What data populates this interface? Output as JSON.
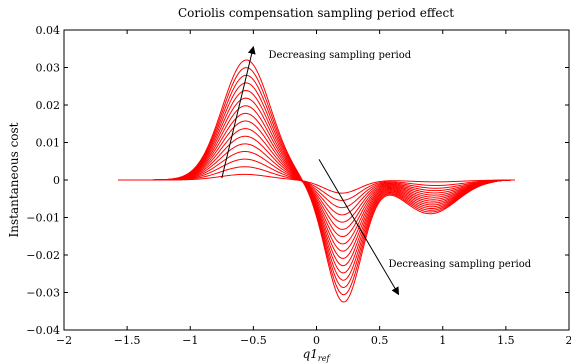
{
  "chart_data": {
    "type": "line",
    "title": "Coriolis compensation sampling period effect",
    "xlabel": "q1",
    "xlabel_sub": "ref",
    "ylabel": "Instantaneous cost",
    "xlim": [
      -2,
      2
    ],
    "ylim": [
      -0.04,
      0.04
    ],
    "xticks": [
      -2,
      -1.5,
      -1,
      -0.5,
      0,
      0.5,
      1,
      1.5,
      2
    ],
    "xtick_labels": [
      "−2",
      "−1.5",
      "−1",
      "−0.5",
      "0",
      "0.5",
      "1",
      "1.5",
      "2"
    ],
    "yticks": [
      -0.04,
      -0.03,
      -0.02,
      -0.01,
      0,
      0.01,
      0.02,
      0.03,
      0.04
    ],
    "ytick_labels": [
      "−0.04",
      "−0.03",
      "−0.02",
      "−0.01",
      "0",
      "0.01",
      "0.02",
      "0.03",
      "0.04"
    ],
    "grid": false,
    "series_color": "#ff0000",
    "curve_count": 16,
    "x_range": [
      -1.57,
      1.57
    ],
    "positive_peak": {
      "x": -0.57,
      "amplitudes": [
        0.0015,
        0.032
      ]
    },
    "negative_trough": {
      "x": 0.2,
      "amplitudes": [
        -0.0035,
        -0.0325
      ]
    },
    "shoulder": {
      "x": 0.95,
      "amplitudes": [
        -0.0005,
        -0.009
      ]
    },
    "annotations": [
      {
        "text": "Decreasing sampling period",
        "arrow_from": [
          -0.75,
          0.0005
        ],
        "arrow_to": [
          -0.5,
          0.0355
        ],
        "text_at": [
          -0.38,
          0.0325
        ]
      },
      {
        "text": "Decreasing sampling period",
        "arrow_from": [
          0.02,
          0.0055
        ],
        "arrow_to": [
          0.65,
          -0.0305
        ],
        "text_at": [
          0.57,
          -0.0232
        ]
      }
    ]
  }
}
